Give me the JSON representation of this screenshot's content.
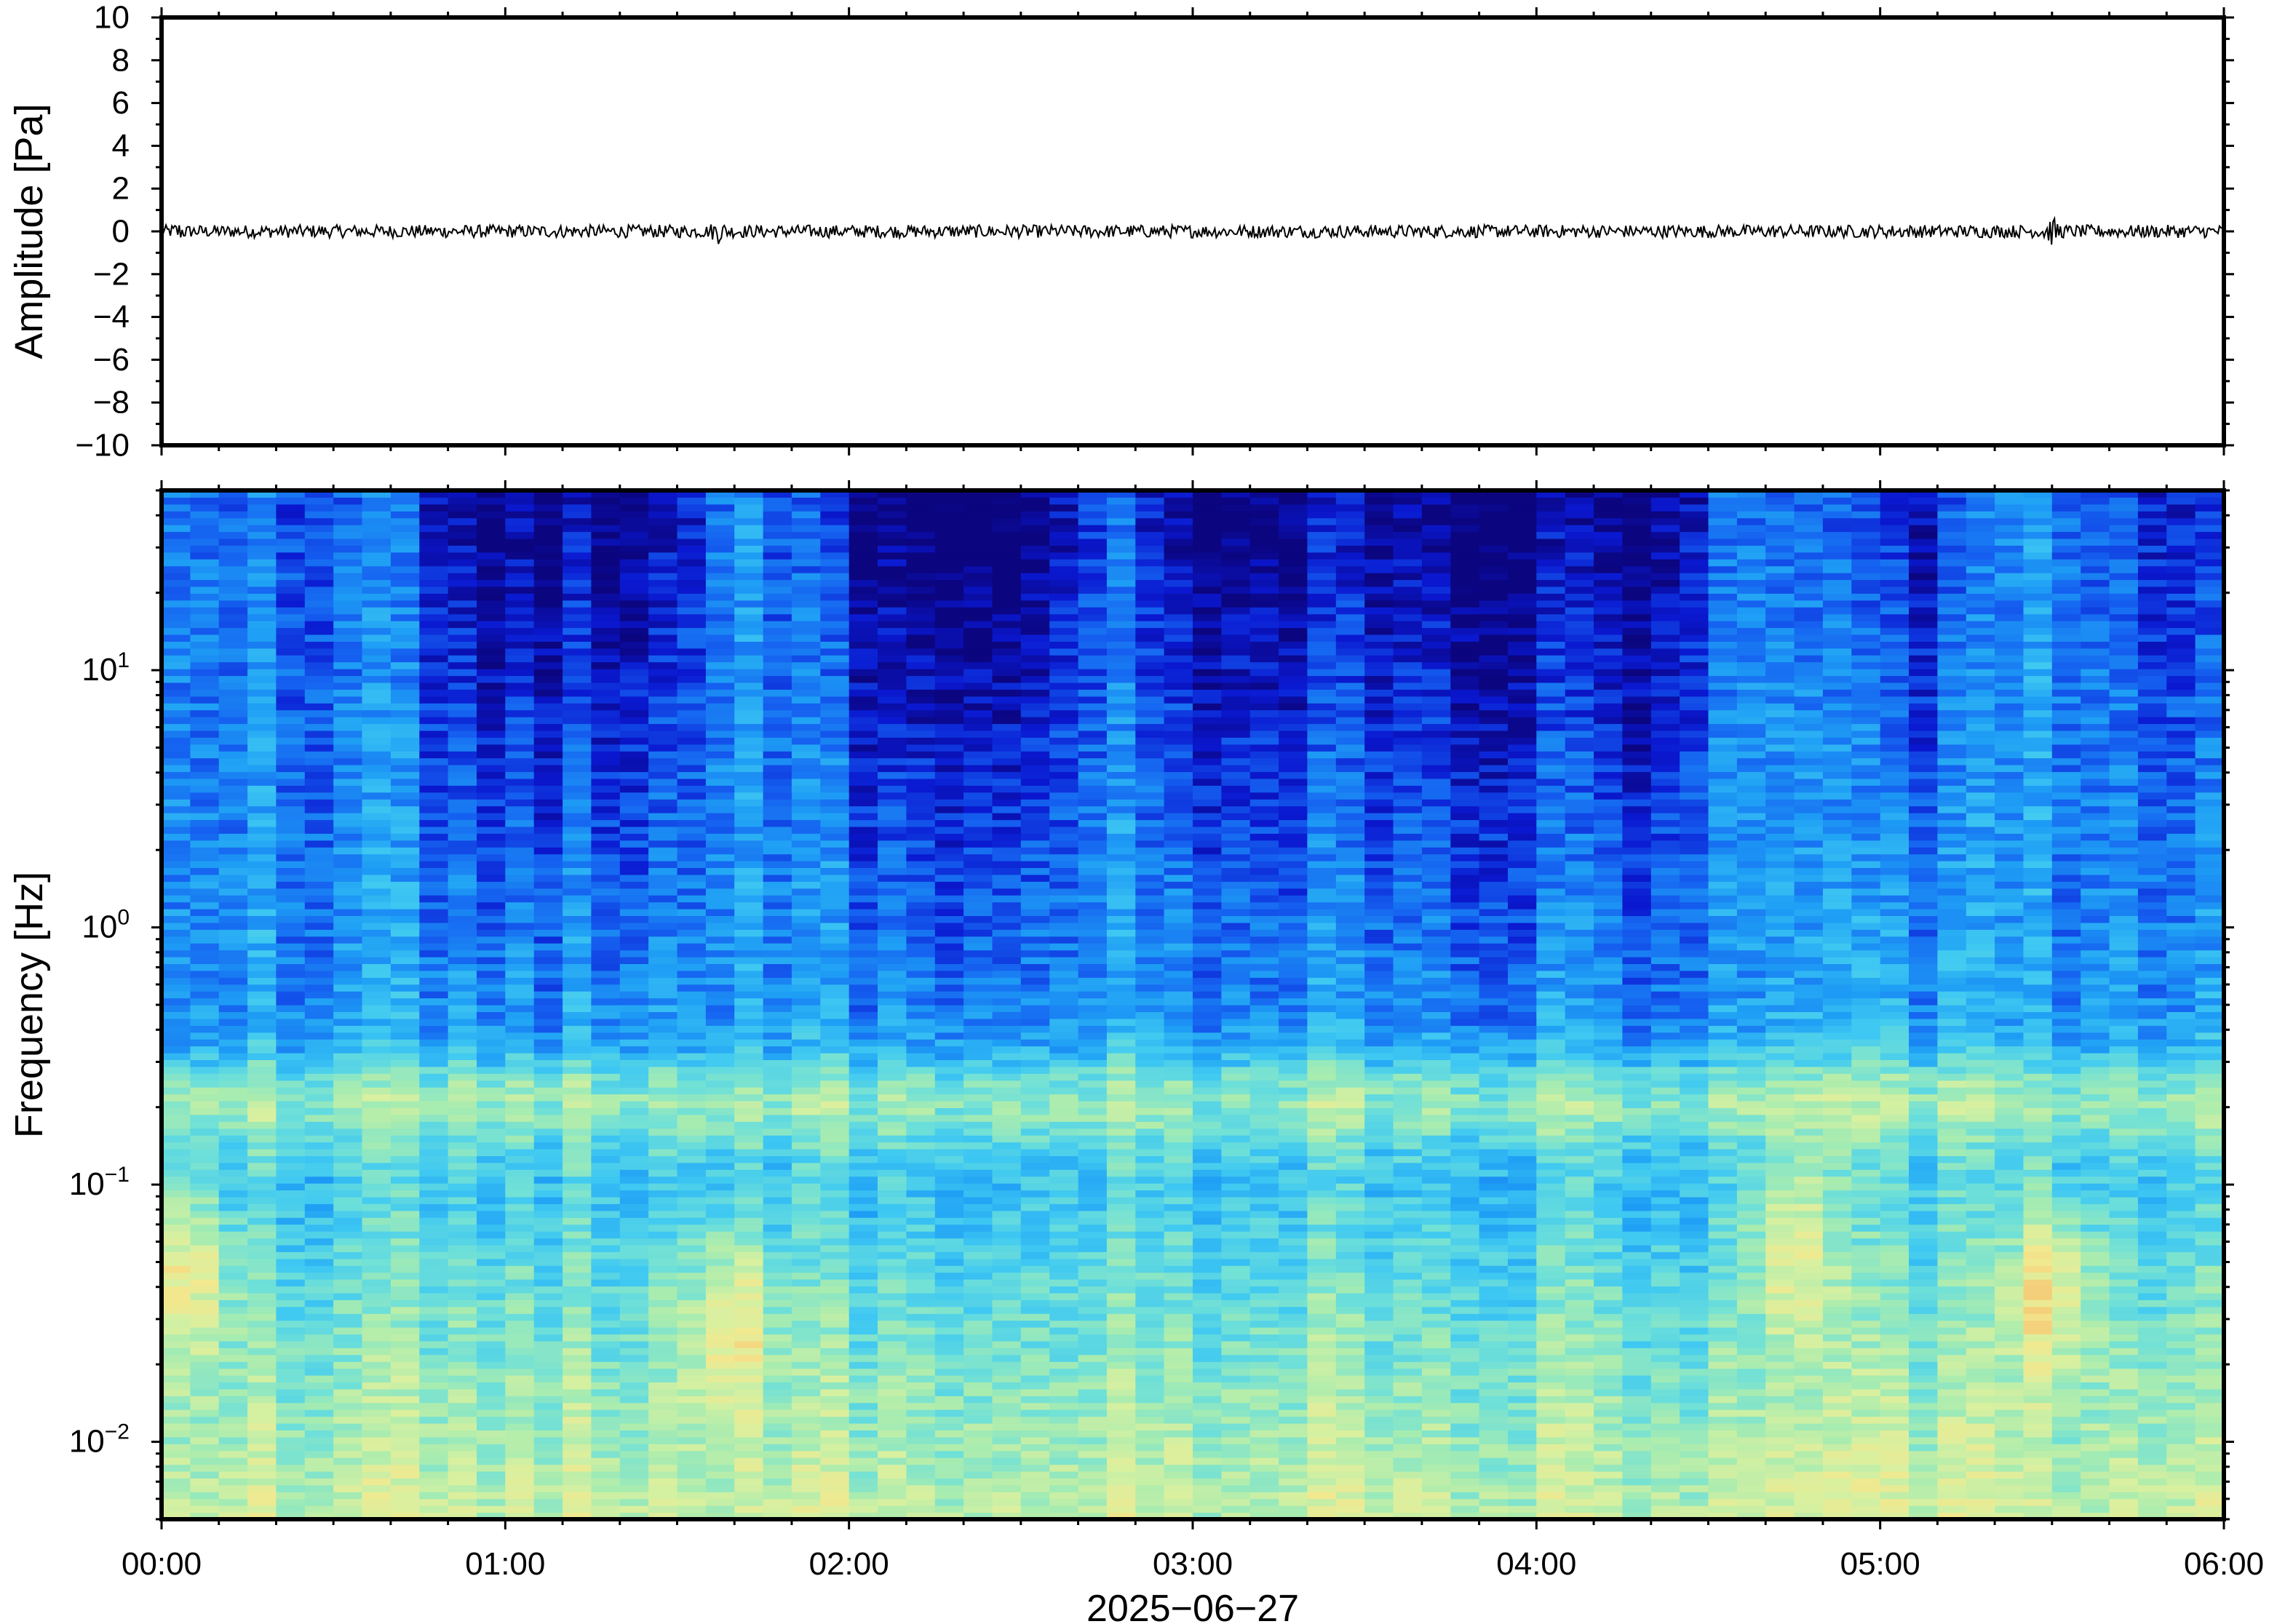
{
  "chart_data": [
    {
      "type": "line",
      "panel": "waveform",
      "ylabel": "Amplitude [Pa]",
      "ylim": [
        -10,
        10
      ],
      "yticks": [
        10,
        8,
        6,
        4,
        2,
        0,
        -2,
        -4,
        -6,
        -8,
        -10
      ],
      "ytick_labels": [
        "10",
        "8",
        "6",
        "4",
        "2",
        "0",
        "−2",
        "−4",
        "−6",
        "−8",
        "−10"
      ],
      "xlim_hours": [
        0,
        6
      ],
      "series": [
        {
          "baseline": 0,
          "typical_peak_amplitude": 0.3,
          "bursts": [
            {
              "t_hours": 0.05,
              "amplitude": 0.5
            },
            {
              "t_hours": 1.62,
              "amplitude": 0.6
            },
            {
              "t_hours": 5.5,
              "amplitude": 0.7
            }
          ]
        }
      ],
      "line_color": "#000000"
    },
    {
      "type": "heatmap",
      "panel": "spectrogram",
      "xlabel": "2025−06−27",
      "ylabel": "Frequency [Hz]",
      "yscale": "log",
      "ylim_hz": [
        0.005,
        50
      ],
      "yticks": [
        {
          "value": 10,
          "mantissa": "10",
          "exp": "1"
        },
        {
          "value": 1,
          "mantissa": "10",
          "exp": "0"
        },
        {
          "value": 0.1,
          "mantissa": "10",
          "exp": "−1"
        },
        {
          "value": 0.01,
          "mantissa": "10",
          "exp": "−2"
        }
      ],
      "xticks": [
        "00:00",
        "01:00",
        "02:00",
        "03:00",
        "04:00",
        "05:00",
        "06:00"
      ],
      "xlim_hours": [
        0,
        6
      ],
      "colormap": [
        "#0b0580",
        "#0a18d0",
        "#1560f0",
        "#1e9ef5",
        "#3ec8f2",
        "#6fe0d8",
        "#a8ecb0",
        "#d8f0a0",
        "#f2e88e",
        "#f5c270",
        "#f09a5c",
        "#e8604a"
      ],
      "microbarom_band_hz": [
        0.15,
        0.3
      ],
      "activity_profile": [
        {
          "t_hours": 0.0,
          "level": 0.85
        },
        {
          "t_hours": 0.2,
          "level": 0.75
        },
        {
          "t_hours": 0.45,
          "level": 0.7
        },
        {
          "t_hours": 0.65,
          "level": 0.72
        },
        {
          "t_hours": 0.85,
          "level": 0.35
        },
        {
          "t_hours": 1.2,
          "level": 0.3
        },
        {
          "t_hours": 1.5,
          "level": 0.4
        },
        {
          "t_hours": 1.65,
          "level": 0.9
        },
        {
          "t_hours": 1.9,
          "level": 0.6
        },
        {
          "t_hours": 2.1,
          "level": 0.25
        },
        {
          "t_hours": 2.5,
          "level": 0.25
        },
        {
          "t_hours": 2.75,
          "level": 0.7
        },
        {
          "t_hours": 2.95,
          "level": 0.35
        },
        {
          "t_hours": 3.3,
          "level": 0.3
        },
        {
          "t_hours": 3.5,
          "level": 0.4
        },
        {
          "t_hours": 3.9,
          "level": 0.3
        },
        {
          "t_hours": 4.3,
          "level": 0.3
        },
        {
          "t_hours": 4.6,
          "level": 0.8
        },
        {
          "t_hours": 4.9,
          "level": 0.55
        },
        {
          "t_hours": 5.1,
          "level": 0.4
        },
        {
          "t_hours": 5.3,
          "level": 0.65
        },
        {
          "t_hours": 5.5,
          "level": 0.95
        },
        {
          "t_hours": 5.75,
          "level": 0.55
        },
        {
          "t_hours": 6.0,
          "level": 0.5
        }
      ],
      "strong_low_freq_events": [
        {
          "t_hours": 0.07,
          "f_hz": 0.045,
          "intensity": 0.95
        },
        {
          "t_hours": 1.65,
          "f_hz": 0.03,
          "intensity": 0.85
        },
        {
          "t_hours": 4.75,
          "f_hz": 0.06,
          "intensity": 0.8
        },
        {
          "t_hours": 5.5,
          "f_hz": 0.04,
          "intensity": 1.0
        }
      ]
    }
  ]
}
